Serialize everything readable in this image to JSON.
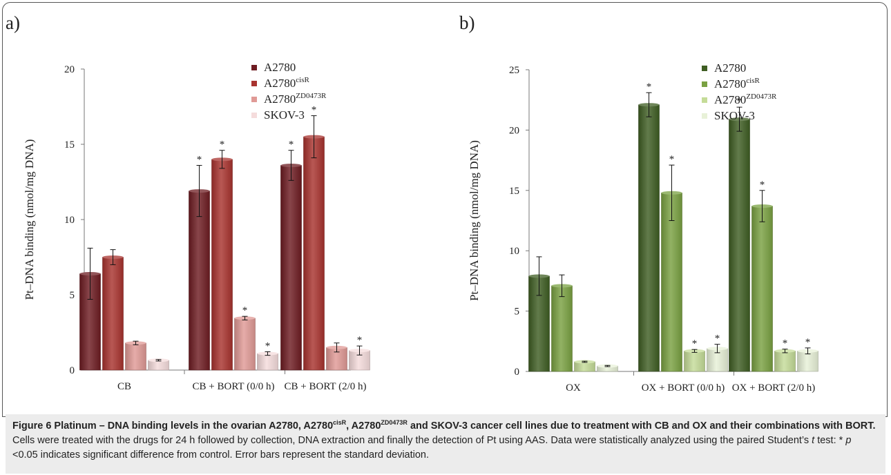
{
  "chart_data": [
    {
      "type": "bar",
      "panel": "a)",
      "ylabel": "Pt–DNA binding (nmol/mg DNA)",
      "ylim": [
        0,
        20
      ],
      "yticks": [
        0,
        5,
        10,
        15,
        20
      ],
      "categories": [
        "CB",
        "CB + BORT (0/0 h)",
        "CB + BORT (2/0 h)"
      ],
      "legend_position": "top-right",
      "series": [
        {
          "name": "A2780",
          "name_sup": "",
          "color": "#6e1c22",
          "values": [
            6.4,
            11.9,
            13.6
          ],
          "errors": [
            1.7,
            1.7,
            1.0
          ],
          "stars": [
            false,
            true,
            true
          ]
        },
        {
          "name": "A2780",
          "name_sup": "cisR",
          "color": "#a8332f",
          "values": [
            7.5,
            14.0,
            15.5
          ],
          "errors": [
            0.5,
            0.6,
            1.4
          ],
          "stars": [
            false,
            true,
            true
          ]
        },
        {
          "name": "A2780",
          "name_sup": "ZD0473R",
          "color": "#e09a96",
          "values": [
            1.8,
            3.45,
            1.5
          ],
          "errors": [
            0.12,
            0.12,
            0.3
          ],
          "stars": [
            false,
            true,
            false
          ]
        },
        {
          "name": "SKOV-3",
          "name_sup": "",
          "color": "#f5dcdc",
          "values": [
            0.65,
            1.1,
            1.3
          ],
          "errors": [
            0.05,
            0.12,
            0.3
          ],
          "stars": [
            false,
            true,
            true
          ]
        }
      ]
    },
    {
      "type": "bar",
      "panel": "b)",
      "ylabel": "Pt–DNA binding (nmol/mg DNA)",
      "ylim": [
        0,
        25
      ],
      "yticks": [
        0,
        5,
        10,
        15,
        20,
        25
      ],
      "categories": [
        "OX",
        "OX + BORT (0/0 h)",
        "OX + BORT (2/0 h)"
      ],
      "legend_position": "top-right",
      "series": [
        {
          "name": "A2780",
          "name_sup": "",
          "color": "#3f5e23",
          "values": [
            7.9,
            22.1,
            20.9
          ],
          "errors": [
            1.6,
            1.0,
            1.0
          ],
          "stars": [
            false,
            true,
            true
          ]
        },
        {
          "name": "A2780",
          "name_sup": "cisR",
          "color": "#7aa142",
          "values": [
            7.1,
            14.8,
            13.7
          ],
          "errors": [
            0.9,
            2.3,
            1.3
          ],
          "stars": [
            false,
            true,
            true
          ]
        },
        {
          "name": "A2780",
          "name_sup": "ZD0473R",
          "color": "#c5dc98",
          "values": [
            0.8,
            1.7,
            1.7
          ],
          "errors": [
            0.05,
            0.12,
            0.15
          ],
          "stars": [
            false,
            true,
            true
          ]
        },
        {
          "name": "SKOV-3",
          "name_sup": "",
          "color": "#e8f1d8",
          "values": [
            0.45,
            1.9,
            1.7
          ],
          "errors": [
            0.05,
            0.35,
            0.25
          ],
          "stars": [
            false,
            true,
            true
          ]
        }
      ]
    }
  ],
  "caption": {
    "bold_1": "Figure 6 Platinum – DNA binding levels in the ovarian A2780, A2780",
    "bold_sup_1": "cisR",
    "bold_2": ", A2780",
    "bold_sup_2": "ZD0473R",
    "bold_3": " and SKOV-3 cancer cell lines due to treatment with CB and OX and their combinations with BORT.",
    "text_1": " Cells were treated with the drugs for 24 h followed by collection, DNA extraction and finally the detection of Pt using AAS. Data were statistically analyzed using the paired Student’s ",
    "italic_t": "t",
    "text_2": " test: * ",
    "italic_p": "p",
    "text_3": " <0.05 indicates significant difference from control. Error bars represent the standard deviation."
  },
  "star_glyph": "*"
}
